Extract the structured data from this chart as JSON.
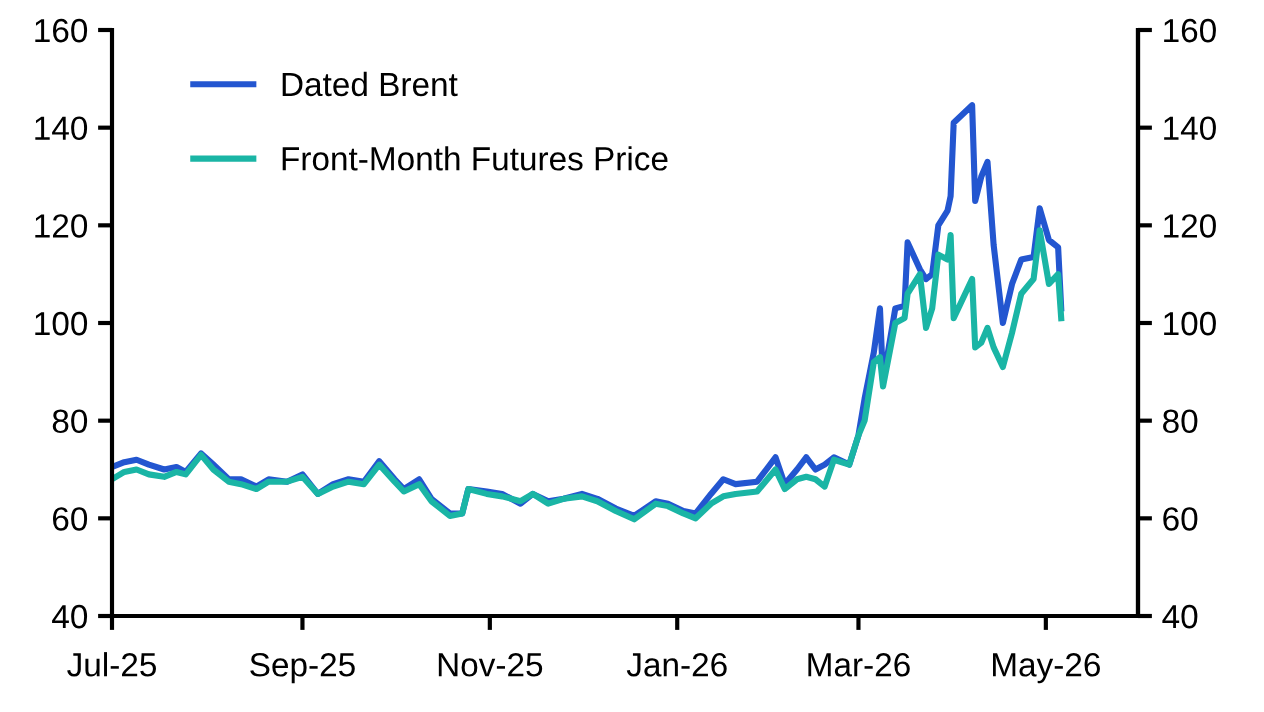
{
  "chart_data": {
    "type": "line",
    "x": [
      "2025-07-01",
      "2025-07-05",
      "2025-07-09",
      "2025-07-13",
      "2025-07-18",
      "2025-07-22",
      "2025-07-25",
      "2025-07-30",
      "2025-08-03",
      "2025-08-08",
      "2025-08-12",
      "2025-08-17",
      "2025-08-21",
      "2025-08-27",
      "2025-09-01",
      "2025-09-06",
      "2025-09-11",
      "2025-09-16",
      "2025-09-21",
      "2025-09-26",
      "2025-10-01",
      "2025-10-04",
      "2025-10-09",
      "2025-10-13",
      "2025-10-19",
      "2025-10-23",
      "2025-10-25",
      "2025-10-31",
      "2025-11-05",
      "2025-11-11",
      "2025-11-15",
      "2025-11-20",
      "2025-11-25",
      "2025-12-01",
      "2025-12-06",
      "2025-12-12",
      "2025-12-18",
      "2025-12-25",
      "2025-12-29",
      "2026-01-03",
      "2026-01-07",
      "2026-01-12",
      "2026-01-16",
      "2026-01-20",
      "2026-01-27",
      "2026-02-02",
      "2026-02-05",
      "2026-02-09",
      "2026-02-12",
      "2026-02-15",
      "2026-02-18",
      "2026-02-21",
      "2026-02-26",
      "2026-03-01",
      "2026-03-03",
      "2026-03-06",
      "2026-03-08",
      "2026-03-09",
      "2026-03-13",
      "2026-03-16",
      "2026-03-17",
      "2026-03-21",
      "2026-03-23",
      "2026-03-25",
      "2026-03-27",
      "2026-03-30",
      "2026-03-31",
      "2026-04-01",
      "2026-04-07",
      "2026-04-08",
      "2026-04-10",
      "2026-04-12",
      "2026-04-14",
      "2026-04-17",
      "2026-04-20",
      "2026-04-23",
      "2026-04-27",
      "2026-04-29",
      "2026-05-02",
      "2026-05-05",
      "2026-05-06"
    ],
    "series": [
      {
        "name": "Dated Brent",
        "color": "#2356d0",
        "values": [
          70.5,
          71.5,
          72,
          71,
          70,
          70.5,
          69.5,
          73.3,
          71,
          68,
          68,
          66.5,
          68,
          67.5,
          69,
          65,
          67,
          68,
          67.5,
          71.7,
          68,
          66,
          68,
          64,
          61,
          61,
          66,
          65.5,
          65,
          63,
          65,
          63.5,
          64,
          65,
          64,
          62,
          60.5,
          63.5,
          63,
          61.5,
          61,
          65,
          68,
          67,
          67.5,
          72.5,
          67,
          70,
          72.5,
          70,
          71,
          72.5,
          71,
          77,
          84.5,
          94,
          103,
          88,
          103,
          103.5,
          116.5,
          111,
          109,
          110,
          120,
          123,
          126,
          141,
          144.6,
          125,
          130,
          133,
          116,
          100,
          108,
          113,
          113.5,
          123.5,
          117,
          115.5,
          103
        ]
      },
      {
        "name": "Front-Month Futures Price",
        "color": "#1ab5a5",
        "values": [
          68,
          69.5,
          70,
          69,
          68.5,
          69.5,
          69,
          73,
          70,
          67.5,
          67,
          66,
          67.5,
          67.5,
          68.5,
          65,
          66.5,
          67.5,
          67,
          71,
          67.5,
          65.5,
          67,
          63.5,
          60.5,
          61,
          66,
          65,
          64.5,
          63.5,
          65,
          63,
          64,
          64.5,
          63.5,
          61.5,
          59.8,
          63,
          62.5,
          61,
          60,
          63,
          64.5,
          65,
          65.5,
          70,
          66,
          68,
          68.5,
          68,
          66.5,
          72,
          71,
          77,
          80,
          92,
          93,
          87,
          100,
          101,
          106,
          110,
          99,
          103,
          114,
          113,
          118,
          101,
          109,
          95,
          96,
          99,
          95,
          91,
          98,
          106,
          109,
          119,
          108,
          110,
          101
        ]
      }
    ],
    "xlim": [
      "2025-07-01",
      "2026-05-31"
    ],
    "xticks": [
      {
        "value": "2025-07-01",
        "label": "Jul-25"
      },
      {
        "value": "2025-09-01",
        "label": "Sep-25"
      },
      {
        "value": "2025-11-01",
        "label": "Nov-25"
      },
      {
        "value": "2026-01-01",
        "label": "Jan-26"
      },
      {
        "value": "2026-03-01",
        "label": "Mar-26"
      },
      {
        "value": "2026-05-01",
        "label": "May-26"
      }
    ],
    "ylim": [
      40,
      160
    ],
    "yticks": [
      40,
      60,
      80,
      100,
      120,
      140,
      160
    ],
    "y2lim": [
      40,
      160
    ],
    "y2ticks": [
      40,
      60,
      80,
      100,
      120,
      140,
      160
    ],
    "legend": "top left",
    "grid": false
  }
}
